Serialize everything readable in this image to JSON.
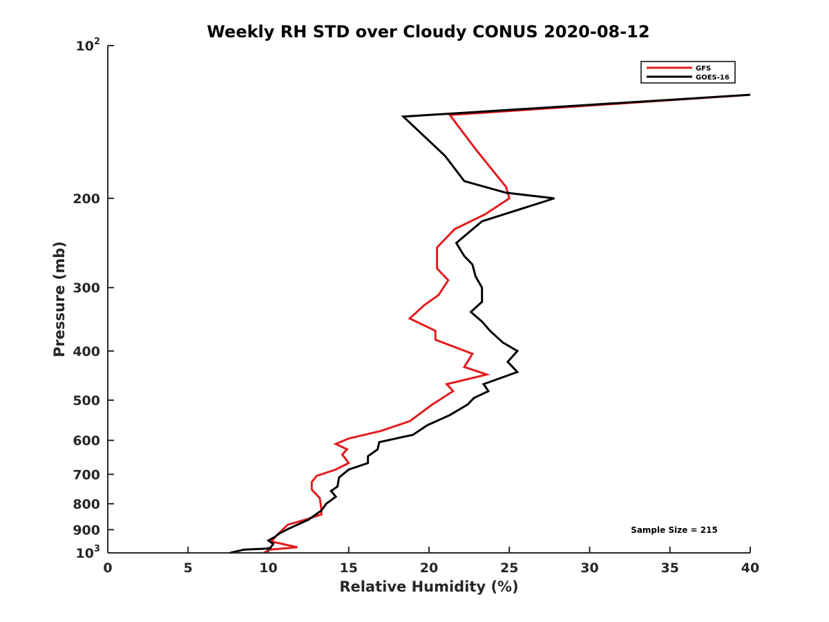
{
  "chart_data": {
    "type": "line",
    "title": "Weekly RH STD over Cloudy CONUS 2020-08-12",
    "xlabel": "Relative Humidity (%)",
    "ylabel": "Pressure (mb)",
    "xlim": [
      0,
      40
    ],
    "ylim": [
      1000,
      100
    ],
    "yscale": "log",
    "grid": false,
    "legend": "top-right",
    "x_ticks": [
      {
        "value": 0,
        "label": "0"
      },
      {
        "value": 5,
        "label": "5"
      },
      {
        "value": 10,
        "label": "10"
      },
      {
        "value": 15,
        "label": "15"
      },
      {
        "value": 20,
        "label": "20"
      },
      {
        "value": 25,
        "label": "25"
      },
      {
        "value": 30,
        "label": "30"
      },
      {
        "value": 35,
        "label": "35"
      },
      {
        "value": 40,
        "label": "40"
      }
    ],
    "y_ticks": [
      {
        "value": 100,
        "base": "10",
        "exp": "2"
      },
      {
        "value": 200,
        "base": "200",
        "exp": ""
      },
      {
        "value": 300,
        "base": "300",
        "exp": ""
      },
      {
        "value": 400,
        "base": "400",
        "exp": ""
      },
      {
        "value": 500,
        "base": "500",
        "exp": ""
      },
      {
        "value": 600,
        "base": "600",
        "exp": ""
      },
      {
        "value": 700,
        "base": "700",
        "exp": ""
      },
      {
        "value": 800,
        "base": "800",
        "exp": ""
      },
      {
        "value": 900,
        "base": "900",
        "exp": ""
      },
      {
        "value": 1000,
        "base": "10",
        "exp": "3"
      }
    ],
    "annotation": "Sample Size = 215",
    "series": [
      {
        "name": "GFS",
        "color": "#e31a1c",
        "points": [
          [
            40.0,
            125
          ],
          [
            21.3,
            137
          ],
          [
            22.9,
            160
          ],
          [
            24.8,
            190
          ],
          [
            25.0,
            200
          ],
          [
            23.5,
            215
          ],
          [
            21.6,
            230
          ],
          [
            20.5,
            250
          ],
          [
            20.5,
            275
          ],
          [
            21.2,
            290
          ],
          [
            20.6,
            310
          ],
          [
            19.7,
            325
          ],
          [
            18.8,
            345
          ],
          [
            20.4,
            365
          ],
          [
            20.4,
            380
          ],
          [
            22.7,
            405
          ],
          [
            22.2,
            430
          ],
          [
            23.6,
            445
          ],
          [
            21.1,
            465
          ],
          [
            21.5,
            480
          ],
          [
            20.2,
            510
          ],
          [
            18.8,
            550
          ],
          [
            17.0,
            575
          ],
          [
            15.0,
            595
          ],
          [
            14.2,
            610
          ],
          [
            14.9,
            625
          ],
          [
            14.6,
            640
          ],
          [
            15.0,
            665
          ],
          [
            14.2,
            685
          ],
          [
            13.0,
            705
          ],
          [
            12.7,
            725
          ],
          [
            12.7,
            750
          ],
          [
            13.2,
            780
          ],
          [
            13.3,
            820
          ],
          [
            13.3,
            840
          ],
          [
            12.3,
            860
          ],
          [
            11.2,
            880
          ],
          [
            10.5,
            925
          ],
          [
            10.2,
            950
          ],
          [
            11.8,
            975
          ],
          [
            10.1,
            985
          ],
          [
            9.7,
            1000
          ]
        ]
      },
      {
        "name": "GOES-16",
        "color": "#000000",
        "points": [
          [
            40.0,
            125
          ],
          [
            18.4,
            138
          ],
          [
            21.0,
            165
          ],
          [
            22.2,
            185
          ],
          [
            24.8,
            195
          ],
          [
            27.8,
            200
          ],
          [
            23.3,
            222
          ],
          [
            21.7,
            245
          ],
          [
            22.2,
            260
          ],
          [
            22.7,
            270
          ],
          [
            22.9,
            285
          ],
          [
            23.3,
            300
          ],
          [
            23.3,
            320
          ],
          [
            22.6,
            335
          ],
          [
            23.3,
            350
          ],
          [
            23.8,
            365
          ],
          [
            24.6,
            385
          ],
          [
            25.5,
            400
          ],
          [
            24.9,
            420
          ],
          [
            25.5,
            440
          ],
          [
            23.4,
            465
          ],
          [
            23.7,
            480
          ],
          [
            22.8,
            495
          ],
          [
            22.4,
            510
          ],
          [
            21.3,
            535
          ],
          [
            19.9,
            560
          ],
          [
            19.0,
            585
          ],
          [
            16.9,
            605
          ],
          [
            16.8,
            625
          ],
          [
            16.2,
            645
          ],
          [
            16.2,
            665
          ],
          [
            15.0,
            685
          ],
          [
            14.4,
            710
          ],
          [
            14.3,
            740
          ],
          [
            13.9,
            755
          ],
          [
            14.2,
            775
          ],
          [
            13.6,
            800
          ],
          [
            13.3,
            825
          ],
          [
            12.5,
            860
          ],
          [
            11.3,
            895
          ],
          [
            10.7,
            915
          ],
          [
            10.4,
            930
          ],
          [
            10.0,
            945
          ],
          [
            10.3,
            960
          ],
          [
            10.1,
            980
          ],
          [
            8.5,
            985
          ],
          [
            7.6,
            1000
          ]
        ]
      }
    ]
  }
}
